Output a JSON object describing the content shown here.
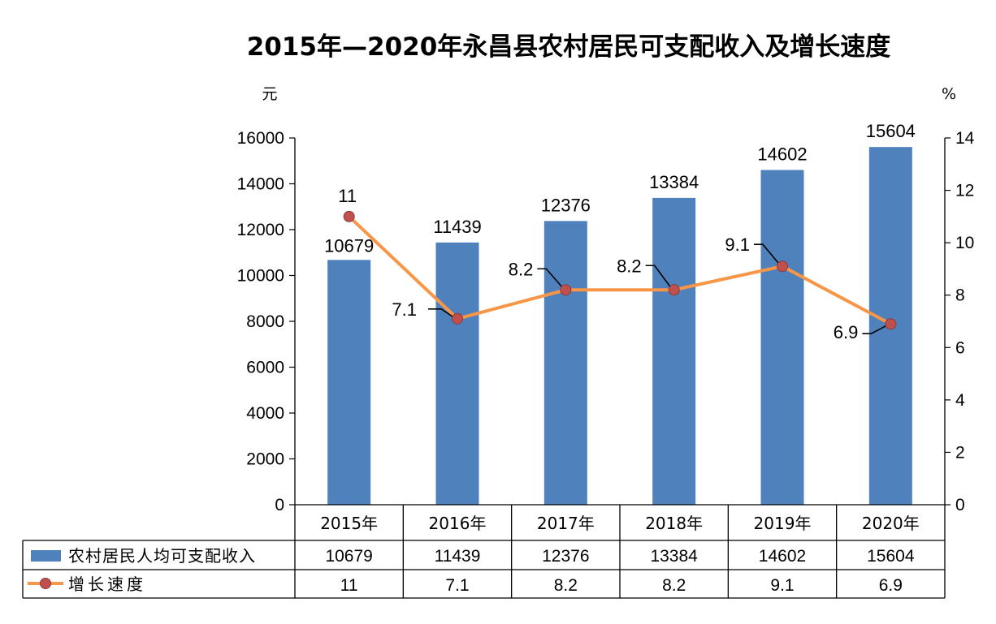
{
  "chart_data": {
    "type": "bar",
    "title": "2015年—2020年永昌县农村居民可支配收入及增长速度",
    "categories": [
      "2015年",
      "2016年",
      "2017年",
      "2018年",
      "2019年",
      "2020年"
    ],
    "series": [
      {
        "name": "农村居民人均可支配收入",
        "type": "bar",
        "axis": "left",
        "color": "#4f81bd",
        "values": [
          10679,
          11439,
          12376,
          13384,
          14602,
          15604
        ],
        "labels": [
          "10679",
          "11439",
          "12376",
          "13384",
          "14602",
          "15604"
        ]
      },
      {
        "name": "增长速度",
        "type": "line",
        "axis": "right",
        "line_color": "#f79646",
        "marker_color": "#c0504d",
        "values": [
          11,
          7.1,
          8.2,
          8.2,
          9.1,
          6.9
        ],
        "labels": [
          "11",
          "7.1",
          "8.2",
          "8.2",
          "9.1",
          "6.9"
        ]
      }
    ],
    "y_left": {
      "unit": "元",
      "range": [
        0,
        16000
      ],
      "ticks": [
        "0",
        "2000",
        "4000",
        "6000",
        "8000",
        "10000",
        "12000",
        "14000",
        "16000"
      ]
    },
    "y_right": {
      "unit": "%",
      "range": [
        0,
        14
      ],
      "ticks": [
        "0",
        "2",
        "4",
        "6",
        "8",
        "10",
        "12",
        "14"
      ]
    },
    "grid": false,
    "legend": "data-table-bottom"
  }
}
